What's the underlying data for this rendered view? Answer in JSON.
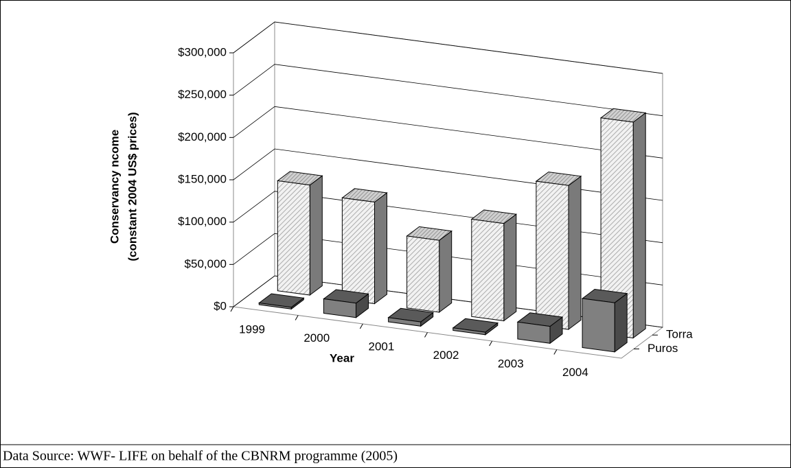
{
  "source": "Data Source: WWF- LIFE on behalf of the CBNRM programme (2005)",
  "chart_data": {
    "type": "bar3d",
    "y_label": [
      "Conservancy ncome",
      "(constant 2004 US$ prices)"
    ],
    "x_label": "Year",
    "categories": [
      "1999",
      "2000",
      "2001",
      "2002",
      "2003",
      "2004"
    ],
    "series": [
      {
        "name": "Puros",
        "color": "#808080",
        "values": [
          2000,
          17000,
          5000,
          3000,
          20000,
          58000
        ]
      },
      {
        "name": "Torra",
        "color": "#f2f2f2",
        "values": [
          130000,
          120000,
          85000,
          115000,
          170000,
          255000
        ]
      }
    ],
    "ylim": [
      0,
      300000
    ],
    "yticks": [
      {
        "value": 0,
        "label": "$0"
      },
      {
        "value": 50000,
        "label": "$50,000"
      },
      {
        "value": 100000,
        "label": "$100,000"
      },
      {
        "value": 150000,
        "label": "$150,000"
      },
      {
        "value": 200000,
        "label": "$200,000"
      },
      {
        "value": 250000,
        "label": "$250,000"
      },
      {
        "value": 300000,
        "label": "$300,000"
      }
    ],
    "grid": true
  }
}
